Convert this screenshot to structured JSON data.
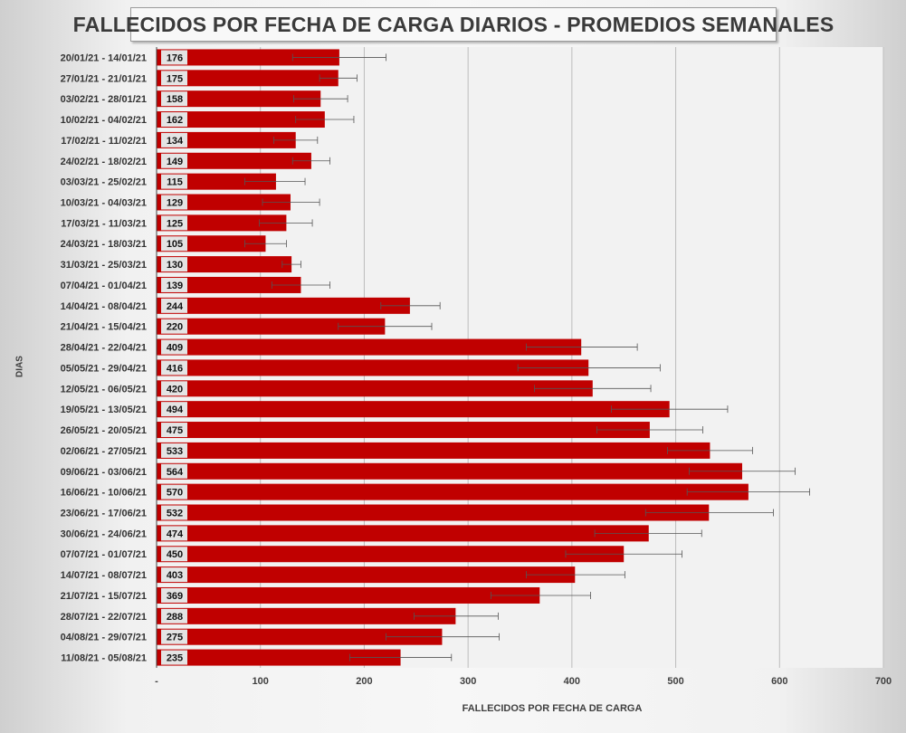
{
  "title": "FALLECIDOS POR FECHA DE CARGA DIARIOS - PROMEDIOS SEMANALES",
  "chart_data": {
    "type": "bar",
    "orientation": "horizontal",
    "title": "FALLECIDOS POR FECHA DE CARGA DIARIOS - PROMEDIOS SEMANALES",
    "xlabel": "FALLECIDOS POR FECHA DE CARGA",
    "ylabel": "DIAS",
    "xlim": [
      0,
      700
    ],
    "x_ticks": [
      "-",
      "100",
      "200",
      "300",
      "400",
      "500",
      "600",
      "700"
    ],
    "grid": true,
    "bar_color": "#c00000",
    "categories": [
      "20/01/21 - 14/01/21",
      "27/01/21 - 21/01/21",
      "03/02/21 - 28/01/21",
      "10/02/21 - 04/02/21",
      "17/02/21 - 11/02/21",
      "24/02/21 - 18/02/21",
      "03/03/21 - 25/02/21",
      "10/03/21 - 04/03/21",
      "17/03/21 - 11/03/21",
      "24/03/21 - 18/03/21",
      "31/03/21 - 25/03/21",
      "07/04/21 - 01/04/21",
      "14/04/21 - 08/04/21",
      "21/04/21 - 15/04/21",
      "28/04/21 - 22/04/21",
      "05/05/21 - 29/04/21",
      "12/05/21 - 06/05/21",
      "19/05/21 - 13/05/21",
      "26/05/21 - 20/05/21",
      "02/06/21 - 27/05/21",
      "09/06/21 - 03/06/21",
      "16/06/21 - 10/06/21",
      "23/06/21 - 17/06/21",
      "30/06/21 - 24/06/21",
      "07/07/21 - 01/07/21",
      "14/07/21 - 08/07/21",
      "21/07/21 - 15/07/21",
      "28/07/21 - 22/07/21",
      "04/08/21 - 29/07/21",
      "11/08/21 - 05/08/21"
    ],
    "values": [
      176,
      175,
      158,
      162,
      134,
      149,
      115,
      129,
      125,
      105,
      130,
      139,
      244,
      220,
      409,
      416,
      420,
      494,
      475,
      533,
      564,
      570,
      532,
      474,
      450,
      403,
      369,
      288,
      275,
      235
    ],
    "error_low": [
      131,
      157,
      132,
      134,
      113,
      131,
      85,
      102,
      99,
      85,
      121,
      111,
      216,
      175,
      356,
      348,
      364,
      438,
      424,
      492,
      513,
      511,
      471,
      422,
      394,
      356,
      322,
      248,
      221,
      186
    ],
    "error_high": [
      221,
      193,
      184,
      190,
      155,
      167,
      143,
      157,
      150,
      125,
      139,
      167,
      273,
      265,
      463,
      485,
      476,
      550,
      526,
      574,
      615,
      629,
      594,
      525,
      506,
      451,
      418,
      329,
      330,
      284
    ]
  }
}
